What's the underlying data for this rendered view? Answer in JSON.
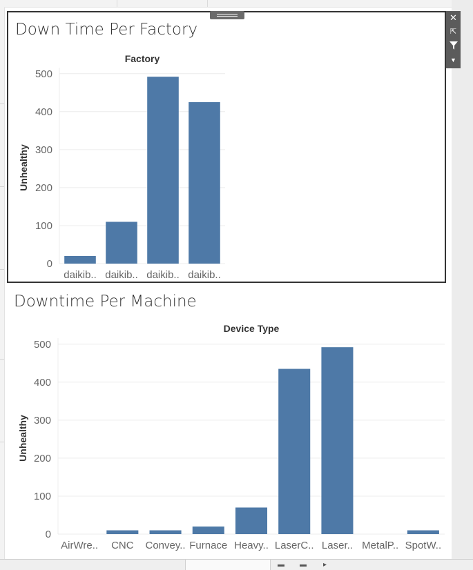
{
  "colors": {
    "bar": "#4e79a7",
    "grid": "#ececec",
    "axis_text": "#666666",
    "frame": "#333333"
  },
  "toolbar": {
    "close_icon": "close-icon",
    "popout_icon": "popout-icon",
    "filter_icon": "filter-icon",
    "more_icon": "chevron-down-icon"
  },
  "chart_data": [
    {
      "type": "bar",
      "title": "Down Time Per Factory",
      "header": "Factory",
      "ylabel": "Unhealthy",
      "ylim": [
        0,
        505
      ],
      "yticks": [
        0,
        100,
        200,
        300,
        400,
        500
      ],
      "categories": [
        "daikib..",
        "daikib..",
        "daikib..",
        "daikib.."
      ],
      "values": [
        20,
        110,
        492,
        425
      ],
      "grid": true
    },
    {
      "type": "bar",
      "title": "Downtime Per Machine",
      "header": "Device Type",
      "ylabel": "Unhealthy",
      "ylim": [
        0,
        505
      ],
      "yticks": [
        0,
        100,
        200,
        300,
        400,
        500
      ],
      "categories": [
        "AirWre..",
        "CNC",
        "Convey..",
        "Furnace",
        "Heavy..",
        "LaserC..",
        "Laser..",
        "MetalP..",
        "SpotW.."
      ],
      "values": [
        0,
        10,
        10,
        20,
        70,
        435,
        492,
        0,
        10
      ],
      "grid": true
    }
  ]
}
